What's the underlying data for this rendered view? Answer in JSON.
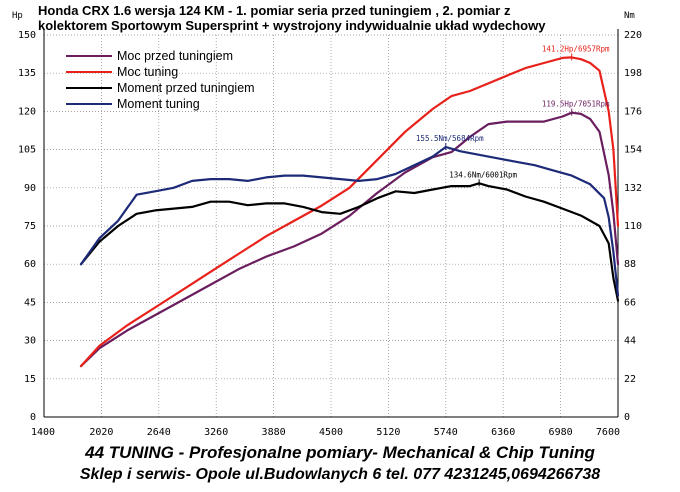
{
  "header": {
    "title_line1": "Honda CRX 1.6 wersja 124 KM - 1. pomiar seria przed tuningiem , 2. pomiar z",
    "title_line2": "kolektorem Sportowym Supersprint + wystrojony indywidualnie układ wydechowy"
  },
  "footer": {
    "line1": "44 TUNING - Profesjonalne pomiary- Mechanical & Chip Tuning",
    "line2": "Sklep i serwis- Opole ul.Budowlanych 6  tel. 077 4231245,0694266738"
  },
  "colors": {
    "before_power": "#6b1e5e",
    "tuned_power": "#e8211a",
    "before_torque": "#000000",
    "tuned_torque": "#1c2a78",
    "grid": "#8a8a8a"
  },
  "chart_data": {
    "type": "line",
    "xlabel": "",
    "left_axis_unit": "Hp",
    "right_axis_unit": "Nm",
    "xlim": [
      1400,
      7600
    ],
    "ylim_left": [
      0,
      150
    ],
    "ylim_right": [
      0,
      220
    ],
    "x_ticks": [
      "1400",
      "2020",
      "2640",
      "3260",
      "3880",
      "4500",
      "5120",
      "5740",
      "6360",
      "6980",
      "7600"
    ],
    "y_ticks_left": [
      "0",
      "15",
      "30",
      "45",
      "60",
      "75",
      "90",
      "105",
      "120",
      "135",
      "150"
    ],
    "y_ticks_right": [
      "0",
      "22",
      "44",
      "66",
      "88",
      "110",
      "132",
      "154",
      "176",
      "198",
      "220"
    ],
    "legend_position": "top-left",
    "grid": true,
    "series": [
      {
        "name": "Moc przed tuningiem",
        "axis": "left",
        "color": "#6b1e5e",
        "x": [
          1800,
          2000,
          2300,
          2600,
          2900,
          3200,
          3500,
          3800,
          4100,
          4400,
          4700,
          5000,
          5300,
          5600,
          5800,
          6000,
          6200,
          6400,
          6600,
          6800,
          7000,
          7100,
          7200,
          7300,
          7400,
          7500,
          7550,
          7600
        ],
        "y": [
          20,
          27,
          34,
          40,
          46,
          52,
          58,
          63,
          67,
          72,
          79,
          88,
          96,
          102,
          104,
          110,
          115,
          116,
          116,
          116,
          118,
          119.5,
          119,
          117,
          112,
          95,
          80,
          60
        ]
      },
      {
        "name": "Moc tuning",
        "axis": "left",
        "color": "#e8211a",
        "x": [
          1800,
          2000,
          2300,
          2600,
          2900,
          3200,
          3500,
          3800,
          4100,
          4400,
          4700,
          5000,
          5300,
          5600,
          5800,
          6000,
          6200,
          6400,
          6600,
          6800,
          7000,
          7100,
          7200,
          7300,
          7400,
          7500,
          7550,
          7600
        ],
        "y": [
          20,
          28,
          36,
          43,
          50,
          57,
          64,
          71,
          77,
          83,
          90,
          101,
          112,
          121,
          126,
          128,
          131,
          134,
          137,
          139,
          141,
          141.2,
          140.5,
          139,
          136,
          120,
          105,
          75
        ]
      },
      {
        "name": "Moment przed tuningiem",
        "axis": "right",
        "color": "#000000",
        "x": [
          1800,
          2000,
          2200,
          2400,
          2600,
          2800,
          3000,
          3200,
          3400,
          3600,
          3800,
          4000,
          4200,
          4400,
          4600,
          4800,
          5000,
          5200,
          5400,
          5600,
          5800,
          6000,
          6100,
          6200,
          6400,
          6600,
          6800,
          7000,
          7200,
          7400,
          7500,
          7550,
          7600
        ],
        "y": [
          88,
          101,
          110,
          117,
          119,
          120,
          121,
          124,
          124,
          122,
          123,
          123,
          121,
          118,
          117,
          121,
          126,
          130,
          129,
          131,
          133,
          133,
          134.6,
          133,
          131,
          127,
          124,
          120,
          116,
          110,
          100,
          80,
          67
        ]
      },
      {
        "name": "Moment tuning",
        "axis": "right",
        "color": "#1c2a78",
        "x": [
          1800,
          2000,
          2200,
          2400,
          2600,
          2800,
          3000,
          3200,
          3400,
          3600,
          3800,
          4000,
          4200,
          4400,
          4600,
          4800,
          5000,
          5200,
          5400,
          5600,
          5740,
          5900,
          6100,
          6300,
          6500,
          6700,
          6900,
          7100,
          7300,
          7450,
          7500,
          7550,
          7600
        ],
        "y": [
          88,
          103,
          113,
          128,
          130,
          132,
          136,
          137,
          137,
          136,
          138,
          139,
          139,
          138,
          137,
          136,
          137,
          140,
          145,
          150,
          155.5,
          153,
          151,
          149,
          147,
          145,
          142,
          139,
          134,
          126,
          115,
          95,
          70
        ]
      }
    ],
    "annotations": [
      {
        "text": "141.2Hp/6957Rpm",
        "axis": "left",
        "x": 7100,
        "y": 141.2,
        "color": "#e8211a"
      },
      {
        "text": "119.5Hp/7051Rpm",
        "axis": "left",
        "x": 7100,
        "y": 119.5,
        "color": "#6b1e5e"
      },
      {
        "text": "155.5Nm/5684Rpm",
        "axis": "right",
        "x": 5740,
        "y": 155.5,
        "color": "#1c2a78"
      },
      {
        "text": "134.6Nm/6001Rpm",
        "axis": "right",
        "x": 6100,
        "y": 134.6,
        "color": "#000000"
      }
    ]
  }
}
